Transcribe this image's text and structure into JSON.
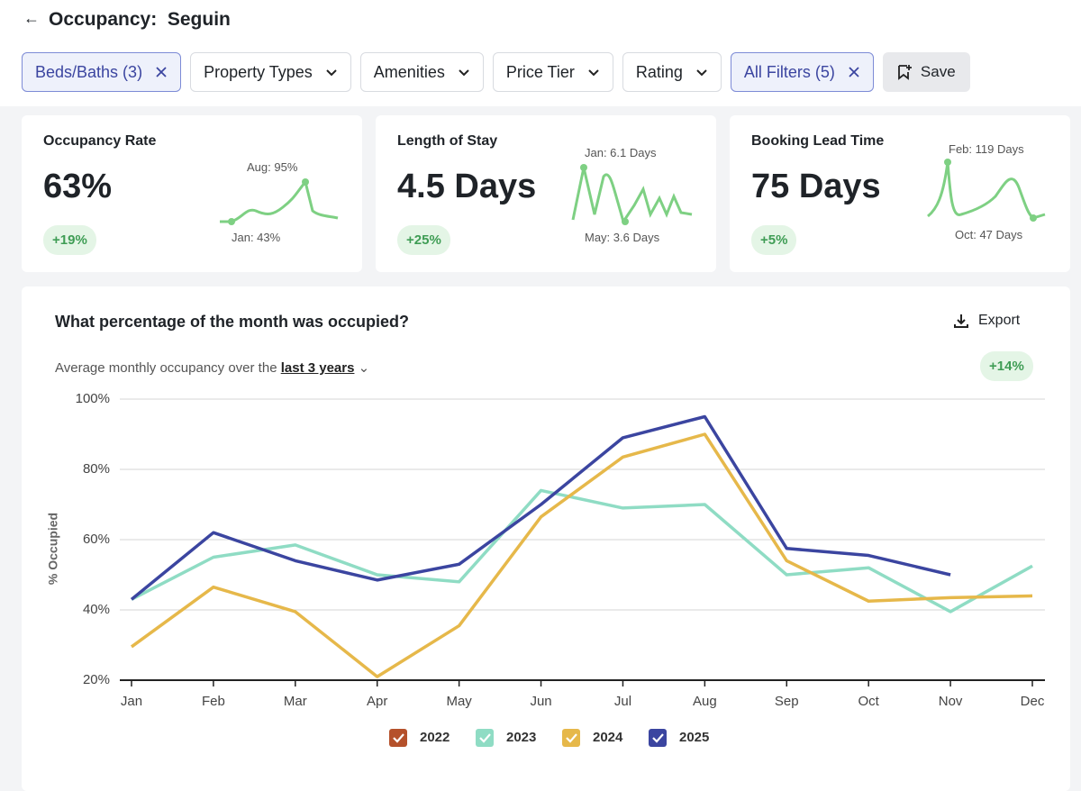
{
  "header": {
    "title": "Occupancy:  Seguin"
  },
  "filters": [
    {
      "label": "Beds/Baths (3)",
      "active": true
    },
    {
      "label": "Property Types",
      "active": false
    },
    {
      "label": "Amenities",
      "active": false
    },
    {
      "label": "Price Tier",
      "active": false
    },
    {
      "label": "Rating",
      "active": false
    },
    {
      "label": "All Filters (5)",
      "active": true
    }
  ],
  "save": "Save",
  "cards": [
    {
      "title": "Occupancy Rate",
      "value": "63%",
      "change": "+19%",
      "high": "Aug: 95%",
      "low": "Jan: 43%"
    },
    {
      "title": "Length of Stay",
      "value": "4.5 Days",
      "change": "+25%",
      "high": "Jan: 6.1 Days",
      "low": "May: 3.6 Days"
    },
    {
      "title": "Booking Lead Time",
      "value": "75 Days",
      "change": "+5%",
      "high": "Feb: 119 Days",
      "low": "Oct: 47 Days"
    }
  ],
  "chart_data": {
    "type": "line",
    "title": "What percentage of the month was occupied?",
    "subtitle": "Average monthly occupancy over the",
    "subtitle_period": "last 3 years",
    "change": "+14%",
    "export": "Export",
    "y_label": "% Occupied",
    "categories": [
      "Jan",
      "Feb",
      "Mar",
      "Apr",
      "May",
      "Jun",
      "Jul",
      "Aug",
      "Sep",
      "Oct",
      "Nov",
      "Dec"
    ],
    "series": [
      {
        "name": "2022",
        "color": "#b5512b",
        "values": [
          null,
          null,
          null,
          null,
          null,
          null,
          null,
          null,
          null,
          null,
          null,
          null
        ]
      },
      {
        "name": "2023",
        "color": "#8fdcc4",
        "values": [
          43,
          55,
          58.5,
          50,
          48,
          74,
          69,
          70,
          50,
          52,
          39.5,
          52.5
        ]
      },
      {
        "name": "2024",
        "color": "#e6b84a",
        "values": [
          29.5,
          46.5,
          39.5,
          21,
          35.5,
          66.5,
          83.5,
          90,
          54,
          42.5,
          43.5,
          44
        ]
      },
      {
        "name": "2025",
        "color": "#3b45a0",
        "values": [
          43,
          62,
          54,
          48.5,
          53,
          70,
          89,
          95,
          57.5,
          55.5,
          50,
          null
        ]
      }
    ],
    "ylim": [
      20,
      100
    ],
    "yticks": [
      {
        "value": 20,
        "label": "20%"
      },
      {
        "value": 40,
        "label": "40%"
      },
      {
        "value": 60,
        "label": "60%"
      },
      {
        "value": 80,
        "label": "80%"
      },
      {
        "value": 100,
        "label": "100%"
      }
    ],
    "grid": true
  }
}
